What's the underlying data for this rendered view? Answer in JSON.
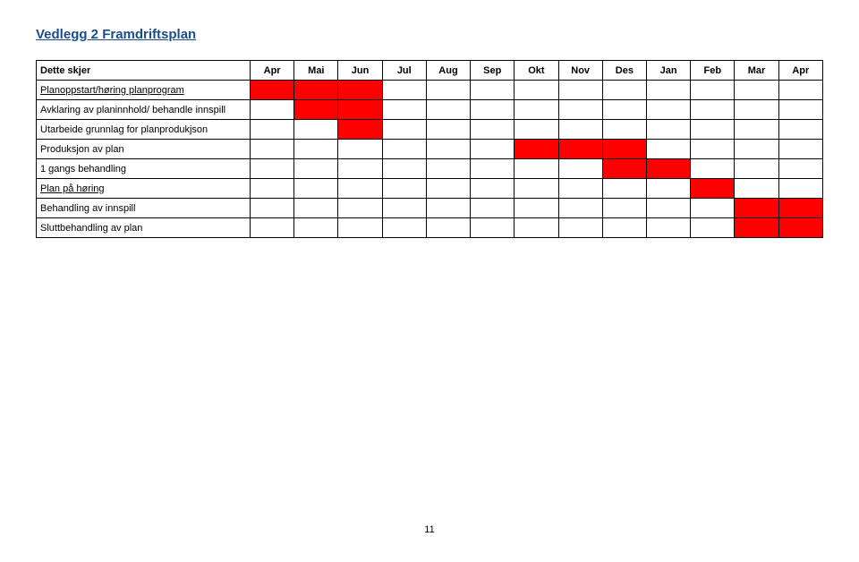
{
  "title": "Vedlegg 2 Framdriftsplan",
  "header_label": "Dette skjer",
  "months": [
    "Apr",
    "Mai",
    "Jun",
    "Jul",
    "Aug",
    "Sep",
    "Okt",
    "Nov",
    "Des",
    "Jan",
    "Feb",
    "Mar",
    "Apr"
  ],
  "rows": [
    {
      "label": "Planoppstart/høring planprogram",
      "underline": true,
      "fill": [
        1,
        1,
        1,
        0,
        0,
        0,
        0,
        0,
        0,
        0,
        0,
        0,
        0
      ]
    },
    {
      "label": "Avklaring av planinnhold/ behandle innspill",
      "underline": false,
      "fill": [
        0,
        1,
        1,
        0,
        0,
        0,
        0,
        0,
        0,
        0,
        0,
        0,
        0
      ]
    },
    {
      "label": "Utarbeide grunnlag for planprodukjson",
      "underline": false,
      "fill": [
        0,
        0,
        1,
        0,
        0,
        0,
        0,
        0,
        0,
        0,
        0,
        0,
        0
      ]
    },
    {
      "label": "Produksjon av plan",
      "underline": false,
      "fill": [
        0,
        0,
        0,
        0,
        0,
        0,
        1,
        1,
        1,
        0,
        0,
        0,
        0
      ]
    },
    {
      "label": "1 gangs behandling",
      "underline": false,
      "fill": [
        0,
        0,
        0,
        0,
        0,
        0,
        0,
        0,
        1,
        1,
        0,
        0,
        0
      ]
    },
    {
      "label": "Plan på høring",
      "underline": true,
      "fill": [
        0,
        0,
        0,
        0,
        0,
        0,
        0,
        0,
        0,
        0,
        1,
        0,
        0
      ]
    },
    {
      "label": "Behandling av innspill",
      "underline": false,
      "fill": [
        0,
        0,
        0,
        0,
        0,
        0,
        0,
        0,
        0,
        0,
        0,
        1,
        1
      ]
    },
    {
      "label": "Sluttbehandling av plan",
      "underline": false,
      "fill": [
        0,
        0,
        0,
        0,
        0,
        0,
        0,
        0,
        0,
        0,
        0,
        1,
        1
      ]
    }
  ],
  "colors": {
    "fill": "#ff0000",
    "border": "#000000",
    "title": "#1a4c8a",
    "background": "#ffffff"
  },
  "page_number": "11"
}
